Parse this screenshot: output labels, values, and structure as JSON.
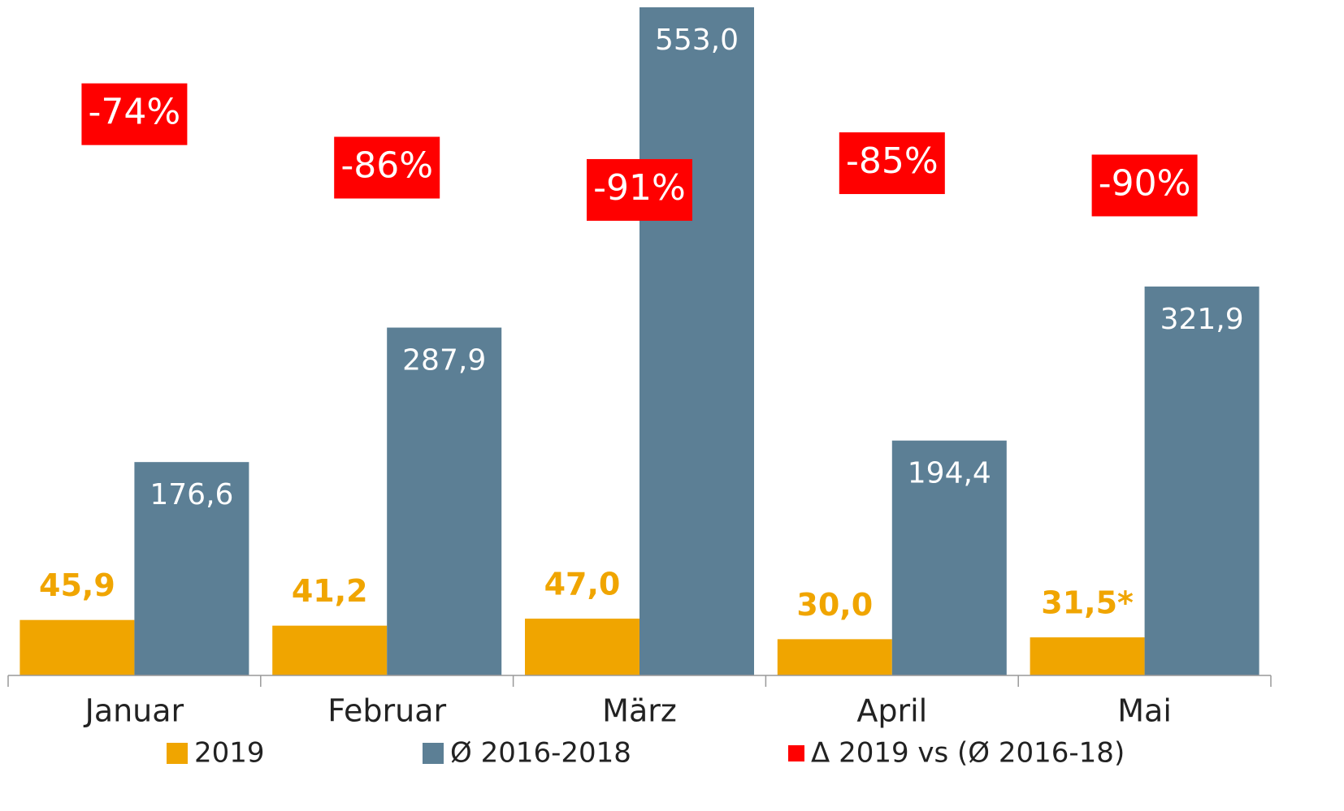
{
  "chart_data": {
    "type": "bar",
    "categories": [
      "Januar",
      "Februar",
      "März",
      "April",
      "Mai"
    ],
    "series": [
      {
        "name": "2019",
        "color": "#f0a500",
        "values": [
          45.9,
          41.2,
          47.0,
          30.0,
          31.5
        ],
        "value_labels": [
          "45,9",
          "41,2",
          "47,0",
          "30,0",
          "31,5*"
        ]
      },
      {
        "name": "Ø 2016-2018",
        "color": "#5c7f95",
        "values": [
          176.6,
          287.9,
          553.0,
          194.4,
          321.9
        ],
        "value_labels": [
          "176,6",
          "287,9",
          "553,0",
          "194,4",
          "321,9"
        ]
      },
      {
        "name": "Δ 2019 vs (Ø 2016-18)",
        "color": "#ff0000",
        "axis": "y2",
        "values": [
          -74,
          -86,
          -91,
          -85,
          -90
        ],
        "value_labels": [
          "-74%",
          "-86%",
          "-91%",
          "-85%",
          "-90%"
        ]
      }
    ],
    "ylim": [
      0,
      553
    ],
    "y2lim": [
      -200,
      -50
    ],
    "legend": "bottom"
  }
}
